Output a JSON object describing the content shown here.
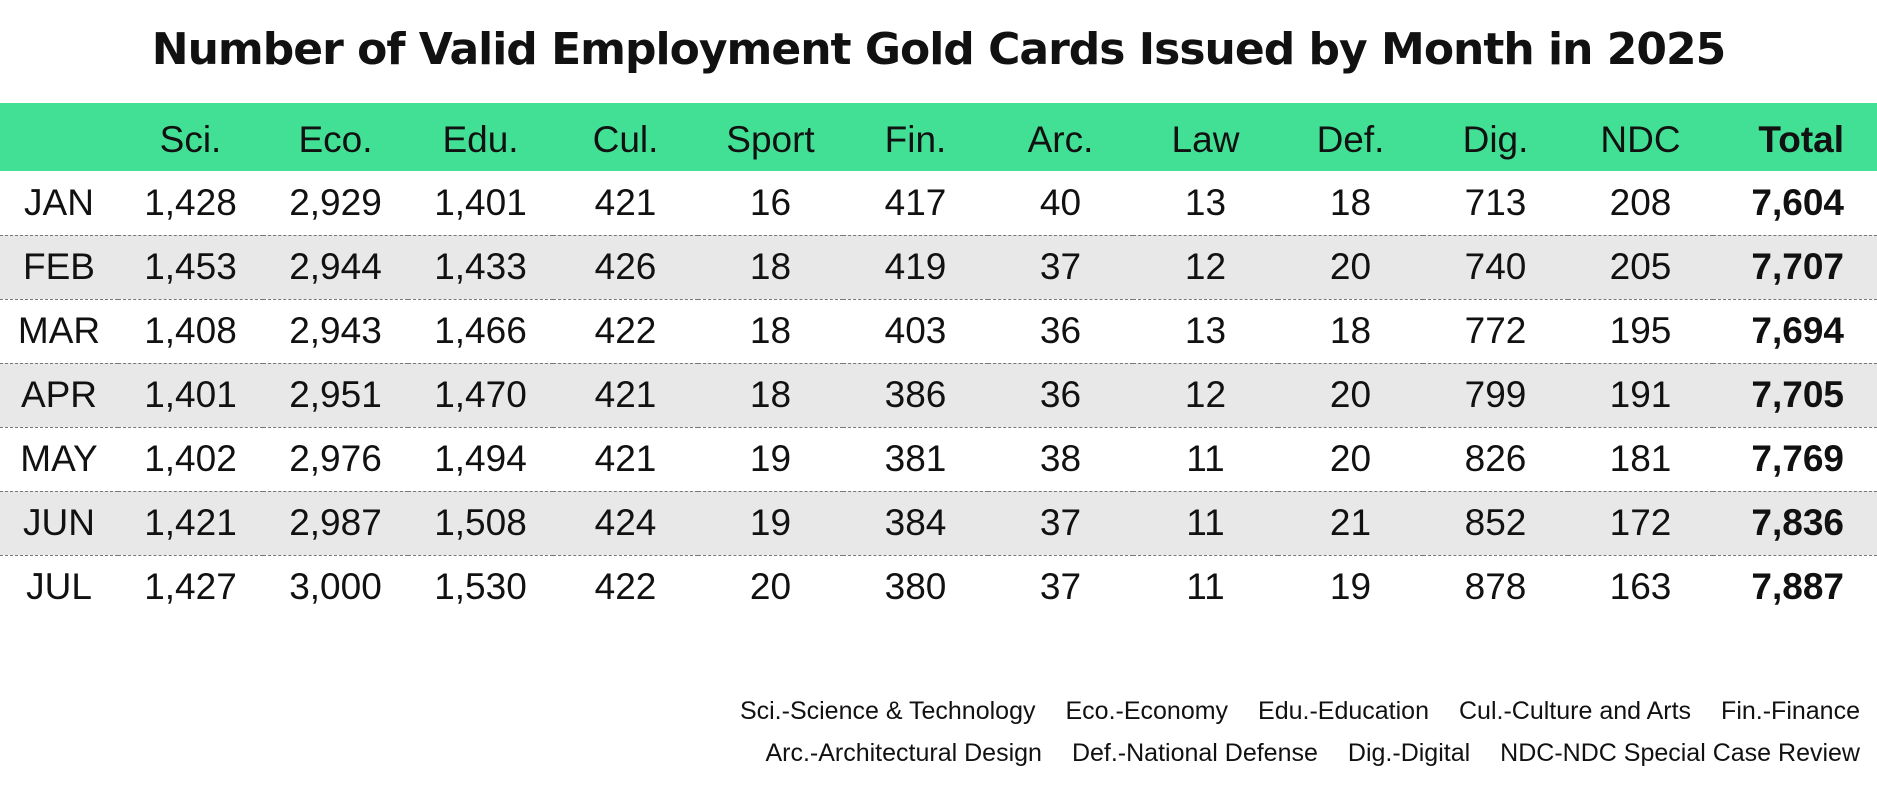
{
  "chart_data": {
    "type": "table",
    "title": "Number of Valid Employment Gold Cards Issued by Month in 2025",
    "columns": [
      "",
      "Sci.",
      "Eco.",
      "Edu.",
      "Cul.",
      "Sport",
      "Fin.",
      "Arc.",
      "Law",
      "Def.",
      "Dig.",
      "NDC",
      "Total"
    ],
    "rows": [
      {
        "month": "JAN",
        "values": [
          "1,428",
          "2,929",
          "1,401",
          "421",
          "16",
          "417",
          "40",
          "13",
          "18",
          "713",
          "208"
        ],
        "total": "7,604"
      },
      {
        "month": "FEB",
        "values": [
          "1,453",
          "2,944",
          "1,433",
          "426",
          "18",
          "419",
          "37",
          "12",
          "20",
          "740",
          "205"
        ],
        "total": "7,707"
      },
      {
        "month": "MAR",
        "values": [
          "1,408",
          "2,943",
          "1,466",
          "422",
          "18",
          "403",
          "36",
          "13",
          "18",
          "772",
          "195"
        ],
        "total": "7,694"
      },
      {
        "month": "APR",
        "values": [
          "1,401",
          "2,951",
          "1,470",
          "421",
          "18",
          "386",
          "36",
          "12",
          "20",
          "799",
          "191"
        ],
        "total": "7,705"
      },
      {
        "month": "MAY",
        "values": [
          "1,402",
          "2,976",
          "1,494",
          "421",
          "19",
          "381",
          "38",
          "11",
          "20",
          "826",
          "181"
        ],
        "total": "7,769"
      },
      {
        "month": "JUN",
        "values": [
          "1,421",
          "2,987",
          "1,508",
          "424",
          "19",
          "384",
          "37",
          "11",
          "21",
          "852",
          "172"
        ],
        "total": "7,836"
      },
      {
        "month": "JUL",
        "values": [
          "1,427",
          "3,000",
          "1,530",
          "422",
          "20",
          "380",
          "37",
          "11",
          "19",
          "878",
          "163"
        ],
        "total": "7,887"
      }
    ],
    "legend": [
      [
        "Sci.-Science & Technology",
        "Eco.-Economy",
        "Edu.-Education",
        "Cul.-Culture and Arts",
        "Fin.-Finance"
      ],
      [
        "Arc.-Architectural Design",
        "Def.-National Defense",
        "Dig.-Digital",
        "NDC-NDC Special Case Review"
      ]
    ]
  },
  "colors": {
    "header_bg": "#42e095",
    "shade_row": "#e8e8e8",
    "text": "#111111"
  }
}
